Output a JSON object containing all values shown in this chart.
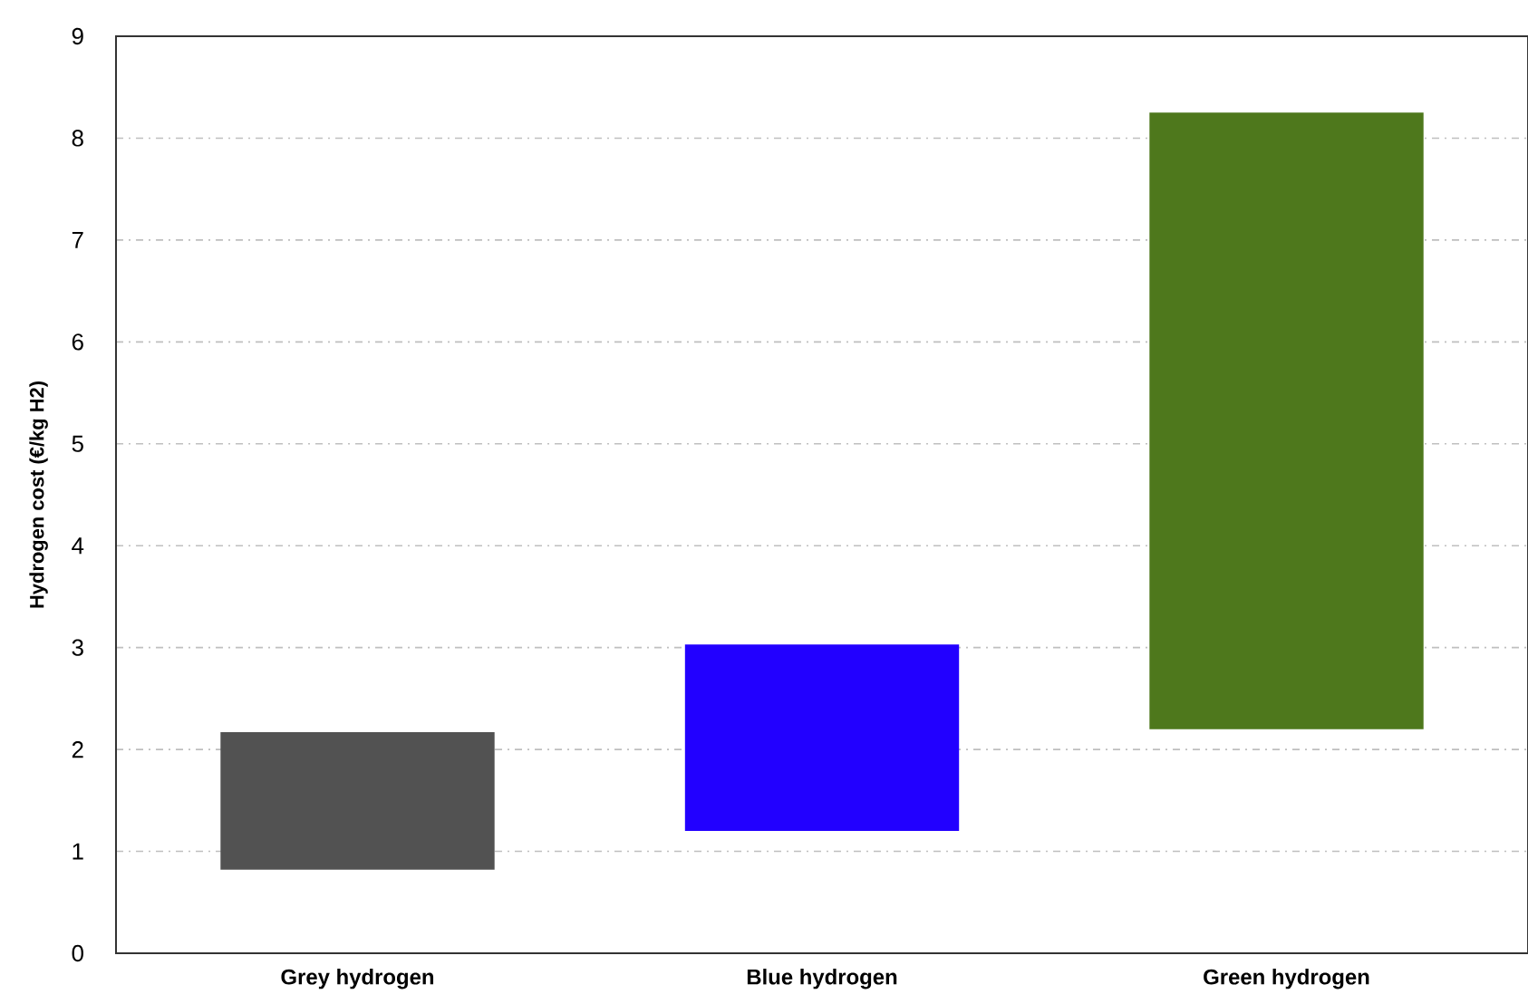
{
  "chart_data": {
    "type": "bar",
    "ylabel": "Hydrogen cost (€/kg H2)",
    "categories": [
      "Grey hydrogen",
      "Blue hydrogen",
      "Green hydrogen"
    ],
    "base": [
      0.82,
      1.2,
      2.2
    ],
    "values": [
      1.35,
      1.83,
      6.05
    ],
    "colors": [
      "#525252",
      "#2200ff",
      "#4e781c"
    ],
    "ylim": [
      0,
      9
    ],
    "yticks": [
      0,
      1,
      2,
      3,
      4,
      5,
      6,
      7,
      8,
      9
    ],
    "grid": "y"
  }
}
